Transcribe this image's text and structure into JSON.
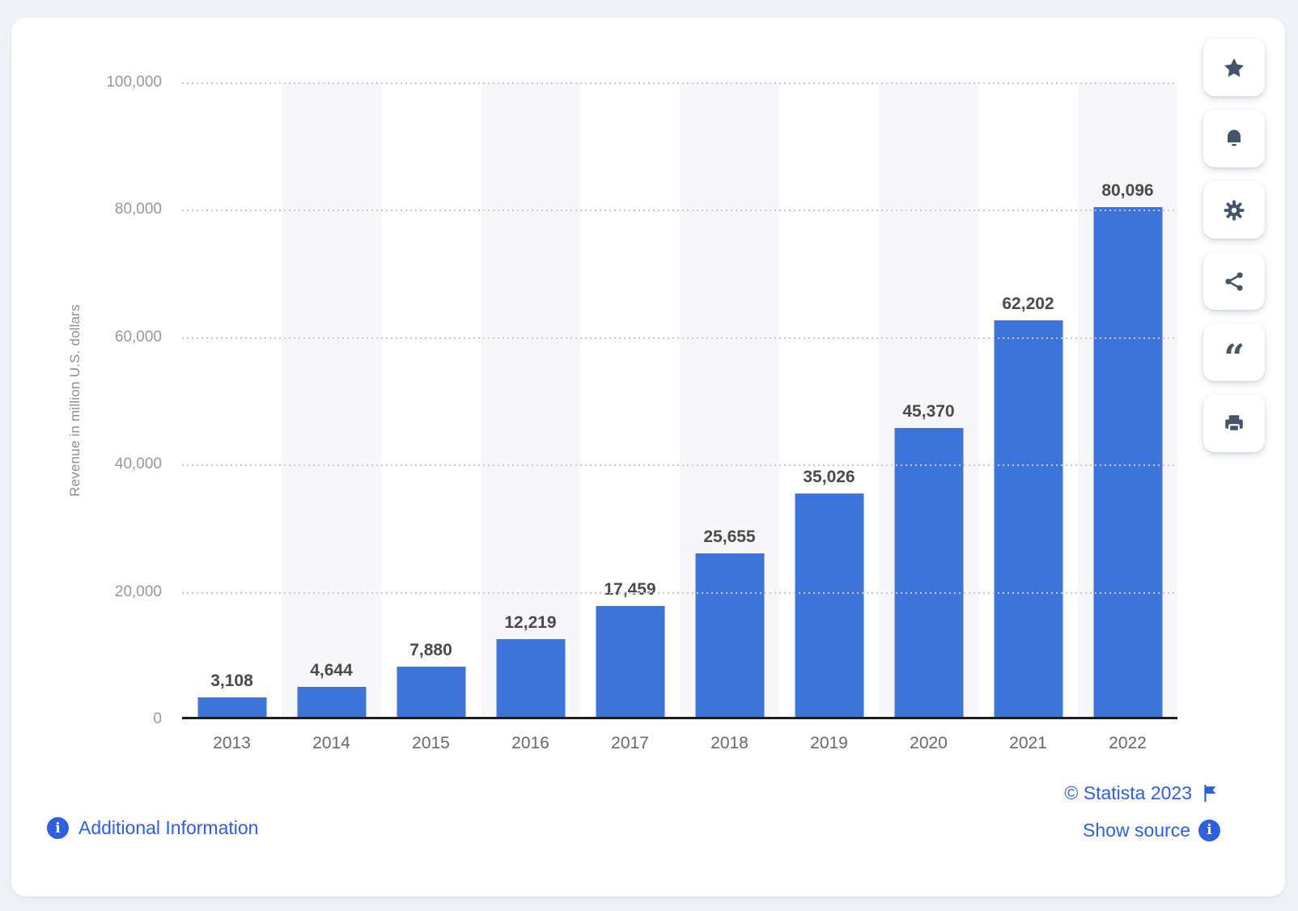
{
  "chart_data": {
    "type": "bar",
    "title": "",
    "xlabel": "",
    "ylabel": "Revenue in million U.S. dollars",
    "categories": [
      "2013",
      "2014",
      "2015",
      "2016",
      "2017",
      "2018",
      "2019",
      "2020",
      "2021",
      "2022"
    ],
    "values": [
      3108,
      4644,
      7880,
      12219,
      17459,
      25655,
      35026,
      45370,
      62202,
      80096
    ],
    "display_values": [
      "3,108",
      "4,644",
      "7,880",
      "12,219",
      "17,459",
      "25,655",
      "35,026",
      "45,370",
      "62,202",
      "80,096"
    ],
    "ylim": [
      0,
      100000
    ],
    "ytick_labels": [
      "0",
      "20,000",
      "40,000",
      "60,000",
      "80,000",
      "100,000"
    ],
    "grid": "horizontal-dotted",
    "legend_position": "none",
    "bar_color": "#3E73D8"
  },
  "toolbar": {
    "buttons": [
      {
        "name": "favorite",
        "icon": "star-icon"
      },
      {
        "name": "alerts",
        "icon": "bell-icon"
      },
      {
        "name": "settings",
        "icon": "gear-icon"
      },
      {
        "name": "share",
        "icon": "share-icon"
      },
      {
        "name": "cite",
        "icon": "quote-icon"
      },
      {
        "name": "print",
        "icon": "printer-icon"
      }
    ]
  },
  "footer": {
    "additional_information_label": "Additional Information",
    "copyright_label": "© Statista 2023",
    "show_source_label": "Show source"
  },
  "colors": {
    "bar": "#3E73D8",
    "link_blue": "#2D5FDE",
    "icon_slate": "#44546B",
    "page_background": "#F1F3F8",
    "card_background": "#FFFFFF",
    "column_stripe": "#F7F7F9",
    "value_label": "#4A4A4A",
    "axis_tick": "#98989A",
    "year_label": "#68686A",
    "baseline": "#1E1E1E"
  }
}
